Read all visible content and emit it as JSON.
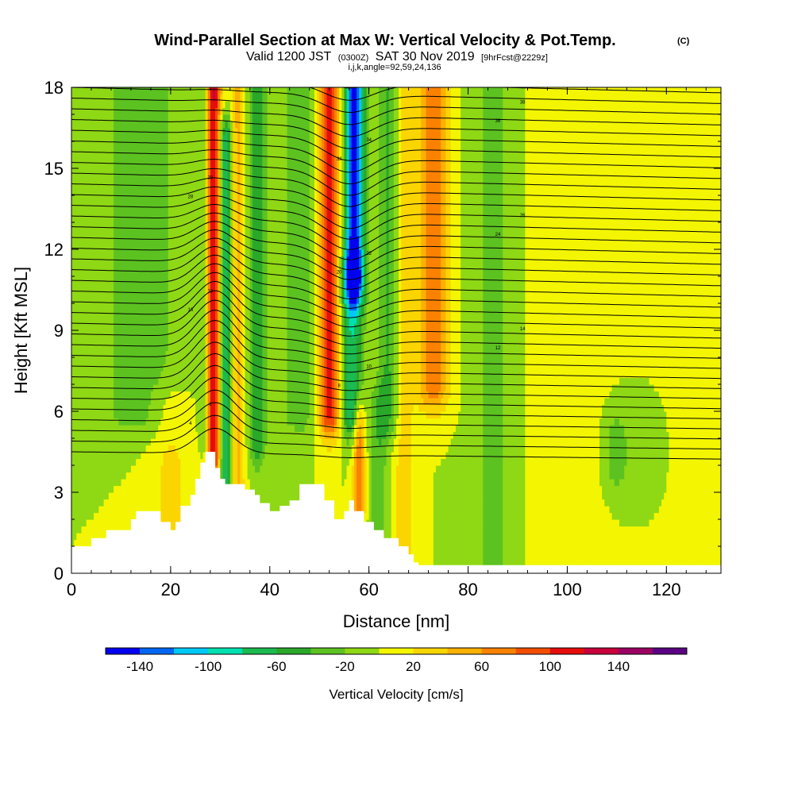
{
  "chart_data": {
    "type": "heatmap",
    "title": "Wind-Parallel Section at Max W: Vertical Velocity & Pot.Temp.",
    "title_mark": "(C)",
    "subtitle_main": "Valid 1200 JST",
    "subtitle_utc": "(0300Z)",
    "subtitle_date": "SAT 30 Nov 2019",
    "subtitle_fcst": "[9hrFcst@2229z]",
    "params": "i,j,k,angle=92,59,24,136",
    "xlabel": "Distance [nm]",
    "ylabel": "Height [Kft MSL]",
    "xlim": [
      0,
      131
    ],
    "ylim": [
      0,
      18
    ],
    "xticks": [
      "0",
      "20",
      "40",
      "60",
      "80",
      "100",
      "120"
    ],
    "yticks": [
      "0",
      "3",
      "6",
      "9",
      "12",
      "15",
      "18"
    ],
    "grid": false,
    "legend_position": "bottom",
    "colorbar": {
      "title": "Vertical Velocity [cm/s]",
      "labels": [
        "-140",
        "-100",
        "-60",
        "-20",
        "20",
        "60",
        "100",
        "140"
      ],
      "levels": [
        -160,
        -140,
        -120,
        -100,
        -80,
        -60,
        -40,
        -20,
        0,
        20,
        40,
        60,
        80,
        100,
        120,
        140,
        160
      ],
      "colors": [
        "#0000f0",
        "#0066f2",
        "#00c8f5",
        "#00e0b0",
        "#1cba50",
        "#2aa82a",
        "#5cc221",
        "#8fd815",
        "#f3f600",
        "#fbd500",
        "#fcb100",
        "#fa8200",
        "#f34e00",
        "#e60d0d",
        "#c8003c",
        "#9b0062",
        "#5a0082"
      ]
    },
    "field": {
      "background_w": 0,
      "features": [
        {
          "x": 28.5,
          "w": 130,
          "sigma_x": 1.2,
          "z_min": 4.5,
          "z_max": 18
        },
        {
          "x": 27.0,
          "w": -55,
          "sigma_x": 0.8,
          "z_min": 5,
          "z_max": 18
        },
        {
          "x": 31.0,
          "w": -90,
          "sigma_x": 0.9,
          "z_min": 3,
          "z_max": 16
        },
        {
          "x": 33.5,
          "w": 45,
          "sigma_x": 1.0,
          "z_min": 3,
          "z_max": 18
        },
        {
          "x": 37.5,
          "w": -60,
          "sigma_x": 1.2,
          "z_min": 5,
          "z_max": 18
        },
        {
          "x": 52.0,
          "w": 110,
          "sigma_x": 1.6,
          "z_min": 6,
          "z_max": 18
        },
        {
          "x": 57.0,
          "w": -150,
          "sigma_x": 1.4,
          "z_min": 11,
          "z_max": 18
        },
        {
          "x": 56.5,
          "w": -80,
          "sigma_x": 1.6,
          "z_min": 6,
          "z_max": 11
        },
        {
          "x": 58.0,
          "w": 80,
          "sigma_x": 0.8,
          "z_min": 2.5,
          "z_max": 5.5
        },
        {
          "x": 62.0,
          "w": -35,
          "sigma_x": 1.2,
          "z_min": 0,
          "z_max": 6
        },
        {
          "x": 64.0,
          "w": -45,
          "sigma_x": 1.5,
          "z_min": 6,
          "z_max": 18
        },
        {
          "x": 73.0,
          "w": 75,
          "sigma_x": 2.2,
          "z_min": 7,
          "z_max": 18
        },
        {
          "x": 67.0,
          "w": 30,
          "sigma_x": 1.5,
          "z_min": 0,
          "z_max": 18
        },
        {
          "x": 85.0,
          "w": -25,
          "sigma_x": 3.0,
          "z_min": 0,
          "z_max": 18
        },
        {
          "x": 100.0,
          "w": 20,
          "sigma_x": 4.0,
          "z_min": 0,
          "z_max": 18
        },
        {
          "x": 110.0,
          "w": -30,
          "sigma_x": 2.0,
          "z_min": 4,
          "z_max": 5
        },
        {
          "x": 14.0,
          "w": -30,
          "sigma_x": 6.0,
          "z_min": 6,
          "z_max": 18
        },
        {
          "x": 20.0,
          "w": 25,
          "sigma_x": 3.0,
          "z_min": 2,
          "z_max": 6
        },
        {
          "x": 46.0,
          "w": -30,
          "sigma_x": 3.0,
          "z_min": 6,
          "z_max": 18
        }
      ]
    },
    "terrain": {
      "x": [
        0,
        4,
        7,
        10,
        12,
        13,
        15,
        18,
        20,
        21,
        22,
        24,
        25,
        26,
        27,
        28,
        29,
        30,
        31,
        33,
        35,
        37,
        38,
        40,
        42,
        44,
        46,
        49,
        51,
        53,
        54,
        55,
        56,
        57,
        59,
        61,
        63,
        66,
        68,
        69,
        70,
        131
      ],
      "z": [
        1.0,
        1.3,
        1.6,
        1.6,
        2.0,
        2.3,
        2.3,
        1.9,
        1.6,
        1.9,
        2.5,
        2.9,
        3.5,
        4.1,
        4.5,
        4.5,
        3.9,
        3.5,
        3.3,
        3.3,
        3.1,
        2.9,
        2.6,
        2.3,
        2.5,
        2.7,
        3.3,
        3.3,
        2.7,
        2.0,
        2.0,
        2.3,
        2.7,
        2.3,
        1.9,
        1.6,
        1.3,
        1.0,
        0.7,
        0.4,
        0.3,
        0.3
      ]
    },
    "theta_contours": {
      "count": 40,
      "stable_layer_base_kft": 4.5,
      "labels": [
        "4",
        "6",
        "8",
        "10",
        "12",
        "14",
        "16",
        "18",
        "20",
        "22",
        "24",
        "26",
        "28",
        "30",
        "32",
        "34",
        "36",
        "38",
        "40"
      ]
    }
  }
}
